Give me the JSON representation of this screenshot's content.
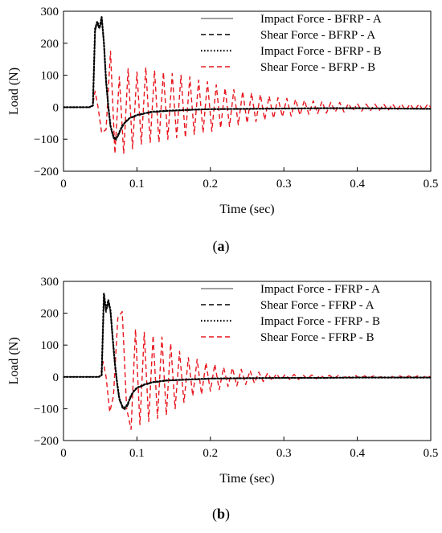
{
  "chart_data": [
    {
      "type": "line",
      "panel_label": "(a)",
      "xlabel": "Time (sec)",
      "ylabel": "Load (N)",
      "xlim": [
        0,
        0.5
      ],
      "ylim": [
        -200,
        300
      ],
      "xticks": [
        0,
        0.1,
        0.2,
        0.3,
        0.4,
        0.5
      ],
      "xtick_labels": [
        "0",
        "0.1",
        "0.2",
        "0.3",
        "0.4",
        "0.5"
      ],
      "yticks": [
        -200,
        -100,
        0,
        100,
        200,
        300
      ],
      "ytick_labels": [
        "−200",
        "−100",
        "0",
        "100",
        "200",
        "300"
      ],
      "grid": false,
      "legend_position": "top-right",
      "series": [
        {
          "name": "Impact Force - BFRP - A",
          "color": "#808080",
          "style": "solid",
          "x": [
            0,
            0.035,
            0.04,
            0.043,
            0.046,
            0.049,
            0.052,
            0.055,
            0.058,
            0.061,
            0.064,
            0.068,
            0.072,
            0.076,
            0.08,
            0.085,
            0.09,
            0.1,
            0.11,
            0.12,
            0.14,
            0.16,
            0.18,
            0.2,
            0.25,
            0.3,
            0.35,
            0.4,
            0.45,
            0.5
          ],
          "y": [
            0,
            0,
            5,
            240,
            265,
            245,
            280,
            200,
            80,
            0,
            -60,
            -95,
            -100,
            -80,
            -60,
            -45,
            -35,
            -25,
            -20,
            -15,
            -12,
            -10,
            -8,
            -6,
            -5,
            -4,
            -3,
            -3,
            -4,
            -5
          ]
        },
        {
          "name": "Shear Force - BFRP - A",
          "color": "#000000",
          "style": "dashed",
          "x": [
            0,
            0.035,
            0.04,
            0.043,
            0.046,
            0.049,
            0.052,
            0.055,
            0.058,
            0.061,
            0.064,
            0.068,
            0.072,
            0.076,
            0.08,
            0.085,
            0.09,
            0.1,
            0.11,
            0.12,
            0.14,
            0.16,
            0.18,
            0.2,
            0.25,
            0.3,
            0.35,
            0.4,
            0.45,
            0.5
          ],
          "y": [
            0,
            0,
            5,
            238,
            262,
            243,
            277,
            198,
            78,
            0,
            -62,
            -97,
            -102,
            -82,
            -62,
            -46,
            -36,
            -26,
            -21,
            -16,
            -12,
            -10,
            -8,
            -6,
            -5,
            -4,
            -3,
            -3,
            -4,
            -5
          ]
        },
        {
          "name": "Impact Force - BFRP - B",
          "color": "#000000",
          "style": "dotted",
          "x": [
            0,
            0.035,
            0.04,
            0.043,
            0.046,
            0.049,
            0.052,
            0.055,
            0.058,
            0.061,
            0.064,
            0.068,
            0.072,
            0.076,
            0.08,
            0.085,
            0.09,
            0.1,
            0.11,
            0.12,
            0.14,
            0.16,
            0.18,
            0.2,
            0.25,
            0.3,
            0.35,
            0.4,
            0.45,
            0.5
          ],
          "y": [
            0,
            0,
            5,
            245,
            268,
            248,
            282,
            202,
            82,
            2,
            -58,
            -93,
            -98,
            -78,
            -58,
            -44,
            -34,
            -24,
            -19,
            -14,
            -11,
            -9,
            -7,
            -6,
            -5,
            -4,
            -3,
            -3,
            -4,
            -5
          ]
        },
        {
          "name": "Shear Force - BFRP - B",
          "color": "#e8141c",
          "style": "dashed",
          "x": [
            0,
            0.036,
            0.04,
            0.043,
            0.047,
            0.052,
            0.058,
            0.064,
            0.07,
            0.076,
            0.082,
            0.088,
            0.094,
            0.1,
            0.106,
            0.112,
            0.118,
            0.124,
            0.13,
            0.136,
            0.142,
            0.148,
            0.154,
            0.16,
            0.166,
            0.172,
            0.178,
            0.184,
            0.19,
            0.196,
            0.202,
            0.208,
            0.214,
            0.22,
            0.226,
            0.232,
            0.238,
            0.244,
            0.25,
            0.256,
            0.262,
            0.268,
            0.274,
            0.28,
            0.286,
            0.292,
            0.298,
            0.304,
            0.31,
            0.316,
            0.322,
            0.328,
            0.334,
            0.34,
            0.346,
            0.352,
            0.358,
            0.364,
            0.37,
            0.376,
            0.382,
            0.388,
            0.394,
            0.4,
            0.406,
            0.412,
            0.418,
            0.424,
            0.43,
            0.436,
            0.442,
            0.448,
            0.454,
            0.46,
            0.466,
            0.472,
            0.478,
            0.484,
            0.49,
            0.496,
            0.5
          ],
          "y": [
            0,
            0,
            10,
            50,
            0,
            -80,
            -70,
            175,
            -145,
            95,
            -145,
            120,
            -130,
            110,
            -115,
            125,
            -110,
            115,
            -110,
            110,
            -100,
            105,
            -95,
            100,
            -95,
            95,
            -85,
            85,
            -80,
            80,
            -75,
            70,
            -65,
            60,
            -60,
            55,
            -55,
            50,
            -50,
            45,
            -45,
            40,
            -40,
            35,
            -35,
            30,
            -30,
            28,
            -28,
            25,
            -25,
            22,
            -22,
            20,
            -20,
            18,
            -18,
            15,
            -15,
            15,
            -15,
            12,
            -12,
            12,
            -12,
            10,
            -10,
            10,
            -10,
            10,
            -10,
            10,
            -10,
            10,
            -10,
            10,
            -10,
            10,
            -10,
            10,
            0
          ]
        }
      ]
    },
    {
      "type": "line",
      "panel_label": "(b)",
      "xlabel": "Time (sec)",
      "ylabel": "Load (N)",
      "xlim": [
        0,
        0.5
      ],
      "ylim": [
        -200,
        300
      ],
      "xticks": [
        0,
        0.1,
        0.2,
        0.3,
        0.4,
        0.5
      ],
      "xtick_labels": [
        "0",
        "0.1",
        "0.2",
        "0.3",
        "0.4",
        "0.5"
      ],
      "yticks": [
        -200,
        -100,
        0,
        100,
        200,
        300
      ],
      "ytick_labels": [
        "−200",
        "−100",
        "0",
        "100",
        "200",
        "300"
      ],
      "grid": false,
      "legend_position": "top-right",
      "series": [
        {
          "name": "Impact Force - FFRP - A",
          "color": "#808080",
          "style": "solid",
          "x": [
            0,
            0.048,
            0.052,
            0.055,
            0.058,
            0.061,
            0.064,
            0.067,
            0.07,
            0.073,
            0.076,
            0.08,
            0.084,
            0.088,
            0.092,
            0.096,
            0.1,
            0.11,
            0.12,
            0.14,
            0.16,
            0.18,
            0.2,
            0.25,
            0.3,
            0.35,
            0.4,
            0.45,
            0.5
          ],
          "y": [
            0,
            0,
            5,
            255,
            205,
            238,
            205,
            120,
            40,
            -20,
            -70,
            -95,
            -100,
            -85,
            -60,
            -45,
            -35,
            -25,
            -18,
            -12,
            -10,
            -8,
            -6,
            -4,
            -3,
            -3,
            -2,
            -2,
            -2
          ]
        },
        {
          "name": "Shear Force - FFRP - A",
          "color": "#000000",
          "style": "dashed",
          "x": [
            0,
            0.048,
            0.052,
            0.055,
            0.058,
            0.061,
            0.064,
            0.067,
            0.07,
            0.073,
            0.076,
            0.08,
            0.084,
            0.088,
            0.092,
            0.096,
            0.1,
            0.11,
            0.12,
            0.14,
            0.16,
            0.18,
            0.2,
            0.25,
            0.3,
            0.35,
            0.4,
            0.45,
            0.5
          ],
          "y": [
            0,
            0,
            5,
            252,
            203,
            235,
            202,
            118,
            38,
            -22,
            -72,
            -97,
            -103,
            -87,
            -62,
            -46,
            -36,
            -26,
            -19,
            -12,
            -10,
            -8,
            -6,
            -4,
            -3,
            -3,
            -2,
            -2,
            -2
          ]
        },
        {
          "name": "Impact Force - FFRP - B",
          "color": "#000000",
          "style": "dotted",
          "x": [
            0,
            0.048,
            0.052,
            0.055,
            0.058,
            0.061,
            0.064,
            0.067,
            0.07,
            0.073,
            0.076,
            0.08,
            0.084,
            0.088,
            0.092,
            0.096,
            0.1,
            0.11,
            0.12,
            0.14,
            0.16,
            0.18,
            0.2,
            0.25,
            0.3,
            0.35,
            0.4,
            0.45,
            0.5
          ],
          "y": [
            0,
            0,
            5,
            262,
            210,
            242,
            208,
            123,
            42,
            -18,
            -68,
            -92,
            -97,
            -82,
            -58,
            -44,
            -34,
            -24,
            -17,
            -11,
            -9,
            -7,
            -5,
            -4,
            -3,
            -3,
            -2,
            -2,
            -2
          ]
        },
        {
          "name": "Shear Force - FFRP - B",
          "color": "#e8141c",
          "style": "dashed",
          "x": [
            0,
            0.048,
            0.051,
            0.054,
            0.058,
            0.063,
            0.068,
            0.074,
            0.08,
            0.086,
            0.092,
            0.098,
            0.104,
            0.11,
            0.116,
            0.122,
            0.128,
            0.134,
            0.14,
            0.146,
            0.152,
            0.158,
            0.164,
            0.17,
            0.176,
            0.182,
            0.188,
            0.194,
            0.2,
            0.206,
            0.212,
            0.218,
            0.224,
            0.23,
            0.236,
            0.242,
            0.248,
            0.254,
            0.26,
            0.266,
            0.272,
            0.278,
            0.284,
            0.29,
            0.296,
            0.302,
            0.308,
            0.314,
            0.32,
            0.326,
            0.332,
            0.338,
            0.344,
            0.35,
            0.356,
            0.362,
            0.368,
            0.374,
            0.38,
            0.386,
            0.392,
            0.398,
            0.404,
            0.41,
            0.416,
            0.422,
            0.428,
            0.434,
            0.44,
            0.446,
            0.452,
            0.458,
            0.464,
            0.47,
            0.476,
            0.482,
            0.488,
            0.494,
            0.5
          ],
          "y": [
            0,
            0,
            10,
            48,
            0,
            -110,
            -60,
            185,
            205,
            -100,
            -165,
            150,
            -150,
            140,
            -140,
            130,
            -130,
            125,
            -120,
            105,
            -100,
            80,
            -80,
            60,
            -60,
            55,
            -55,
            45,
            -45,
            40,
            -40,
            30,
            -30,
            28,
            -28,
            24,
            -24,
            20,
            -20,
            15,
            -15,
            12,
            -12,
            10,
            -10,
            8,
            -8,
            8,
            -8,
            6,
            -6,
            6,
            -6,
            5,
            -5,
            5,
            -5,
            4,
            -4,
            4,
            -4,
            4,
            -4,
            3,
            -3,
            3,
            -3,
            3,
            -3,
            3,
            -3,
            3,
            -3,
            3,
            -3,
            3,
            -3,
            3,
            0
          ]
        }
      ]
    }
  ]
}
